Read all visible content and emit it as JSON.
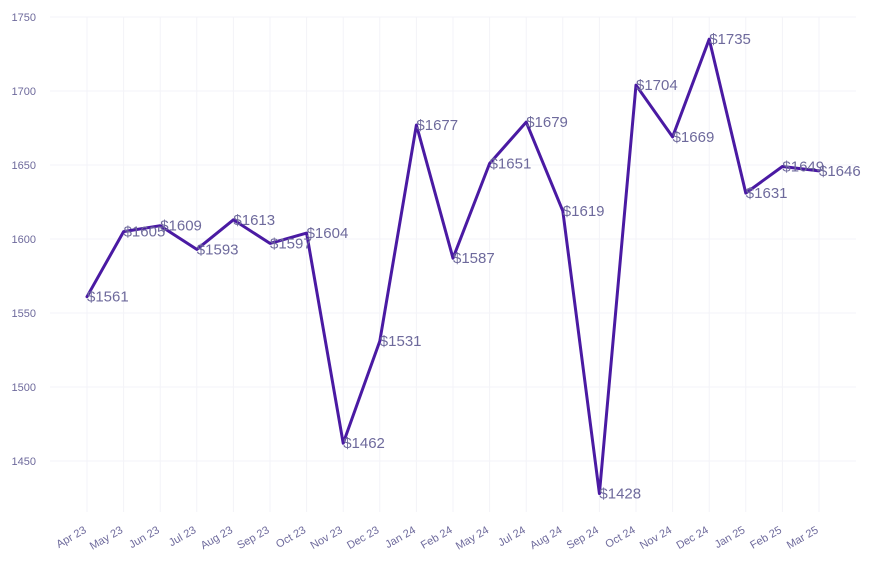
{
  "chart_data": {
    "type": "line",
    "title": "",
    "xlabel": "",
    "ylabel": "",
    "categories": [
      "Apr 23",
      "May 23",
      "Jun 23",
      "Jul 23",
      "Aug 23",
      "Sep 23",
      "Oct 23",
      "Nov 23",
      "Dec 23",
      "Jan 24",
      "Feb 24",
      "May 24",
      "Jul 24",
      "Aug 24",
      "Sep 24",
      "Oct 24",
      "Nov 24",
      "Dec 24",
      "Jan 25",
      "Feb 25",
      "Mar 25"
    ],
    "values": [
      1561,
      1605,
      1609,
      1593,
      1613,
      1597,
      1604,
      1462,
      1531,
      1677,
      1587,
      1651,
      1679,
      1619,
      1428,
      1704,
      1669,
      1735,
      1631,
      1649,
      1646
    ],
    "data_labels": [
      "$1561",
      "$1605",
      "$1609",
      "$1593",
      "$1613",
      "$1597",
      "$1604",
      "$1462",
      "$1531",
      "$1677",
      "$1587",
      "$1651",
      "$1679",
      "$1619",
      "$1428",
      "$1704",
      "$1669",
      "$1735",
      "$1631",
      "$1649",
      "$1646"
    ],
    "yticks": [
      1450,
      1500,
      1550,
      1600,
      1650,
      1700,
      1750
    ],
    "ylim": [
      1410,
      1750
    ],
    "grid": true,
    "line_color": "#4a1aa3",
    "label_color": "#6e6a9c"
  }
}
